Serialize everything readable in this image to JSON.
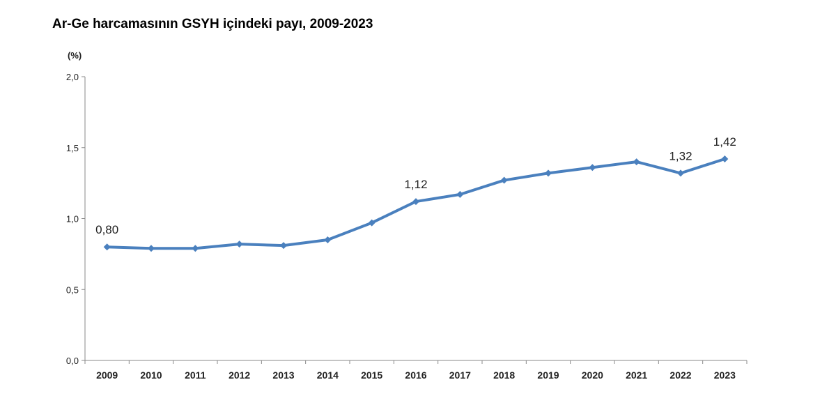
{
  "chart_data": {
    "type": "line",
    "title": "Ar-Ge harcamasının GSYH içindeki payı, 2009-2023",
    "unit_label": "(%)",
    "xlabel": "",
    "ylabel": "",
    "ylim": [
      0,
      2.0
    ],
    "y_ticks": [
      "0,0",
      "0,5",
      "1,0",
      "1,5",
      "2,0"
    ],
    "categories": [
      "2009",
      "2010",
      "2011",
      "2012",
      "2013",
      "2014",
      "2015",
      "2016",
      "2017",
      "2018",
      "2019",
      "2020",
      "2021",
      "2022",
      "2023"
    ],
    "series": [
      {
        "values": [
          0.8,
          0.79,
          0.79,
          0.82,
          0.81,
          0.85,
          0.97,
          1.12,
          1.17,
          1.27,
          1.32,
          1.36,
          1.4,
          1.32,
          1.42
        ],
        "color": "#4a80be"
      }
    ],
    "data_labels": [
      {
        "index": 0,
        "text": "0,80"
      },
      {
        "index": 7,
        "text": "1,12"
      },
      {
        "index": 13,
        "text": "1,32"
      },
      {
        "index": 14,
        "text": "1,42"
      }
    ],
    "grid": false,
    "legend": "none"
  }
}
